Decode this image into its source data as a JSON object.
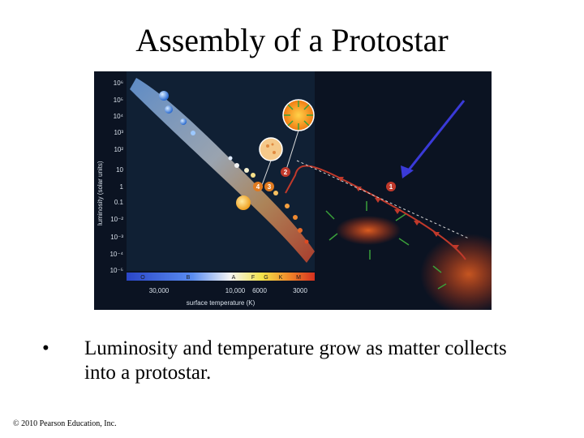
{
  "slide": {
    "title": "Assembly of a Protostar",
    "bullet_marker": "•",
    "bullet_text": "Luminosity and temperature grow as matter collects into a protostar.",
    "copyright": "© 2010 Pearson Education, Inc."
  },
  "figure": {
    "y_axis_label": "luminosity (solar units)",
    "x_axis_label": "surface temperature (K)",
    "y_ticks": [
      "10⁶",
      "10⁵",
      "10⁴",
      "10³",
      "10²",
      "10",
      "1",
      "0.1",
      "10⁻²",
      "10⁻³",
      "10⁻⁴",
      "10⁻⁵"
    ],
    "spectral_classes": [
      "O",
      "B",
      "A",
      "F",
      "G",
      "K",
      "M"
    ],
    "x_ticks": [
      "30,000",
      "10,000",
      "6000",
      "3000"
    ],
    "markers": [
      "1",
      "2",
      "3",
      "4"
    ],
    "colors": {
      "background": "#0a1220",
      "track": "#c0392b",
      "arrow": "#3a3ad8",
      "main_sequence_hot": "#8fc4ff",
      "main_sequence_cool": "#ff7a3a"
    }
  }
}
